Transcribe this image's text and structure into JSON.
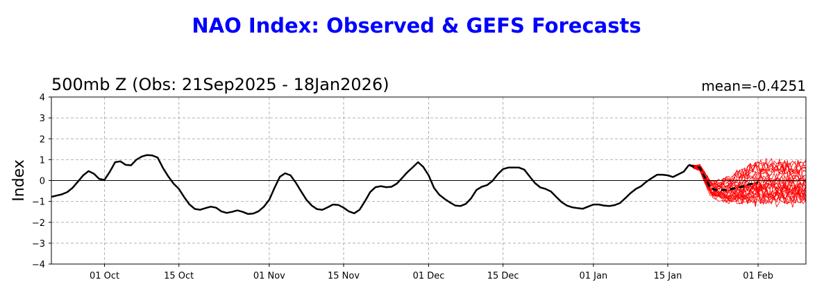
{
  "chart_data": {
    "type": "line",
    "title": "NAO Index: Observed & GEFS Forecasts",
    "subtitle": "500mb Z (Obs: 21Sep2025 - 18Jan2026)",
    "mean_label": "mean=-0.4251",
    "ylabel": "Index",
    "ylim": [
      -4,
      4
    ],
    "yticks": [
      -4,
      -3,
      -2,
      -1,
      0,
      1,
      2,
      3,
      4
    ],
    "xlim_days": [
      -10,
      132
    ],
    "xticks": [
      {
        "day": 0,
        "label": "01 Oct"
      },
      {
        "day": 14,
        "label": "15 Oct"
      },
      {
        "day": 31,
        "label": "01 Nov"
      },
      {
        "day": 45,
        "label": "15 Nov"
      },
      {
        "day": 61,
        "label": "01 Dec"
      },
      {
        "day": 75,
        "label": "15 Dec"
      },
      {
        "day": 92,
        "label": "01 Jan"
      },
      {
        "day": 106,
        "label": "15 Jan"
      },
      {
        "day": 123,
        "label": "01 Feb"
      }
    ],
    "grid": true,
    "observed": {
      "color": "#000000",
      "points": [
        [
          -10,
          -0.78
        ],
        [
          -9,
          -0.72
        ],
        [
          -8,
          -0.66
        ],
        [
          -7,
          -0.55
        ],
        [
          -6,
          -0.35
        ],
        [
          -5,
          -0.05
        ],
        [
          -4,
          0.25
        ],
        [
          -3,
          0.45
        ],
        [
          -2,
          0.33
        ],
        [
          -1,
          0.08
        ],
        [
          0,
          0.03
        ],
        [
          1,
          0.42
        ],
        [
          2,
          0.88
        ],
        [
          3,
          0.92
        ],
        [
          4,
          0.75
        ],
        [
          5,
          0.73
        ],
        [
          6,
          1.0
        ],
        [
          7,
          1.15
        ],
        [
          8,
          1.22
        ],
        [
          9,
          1.2
        ],
        [
          10,
          1.1
        ],
        [
          11,
          0.6
        ],
        [
          12,
          0.2
        ],
        [
          13,
          -0.15
        ],
        [
          14,
          -0.4
        ],
        [
          15,
          -0.8
        ],
        [
          16,
          -1.15
        ],
        [
          17,
          -1.36
        ],
        [
          18,
          -1.4
        ],
        [
          19,
          -1.32
        ],
        [
          20,
          -1.25
        ],
        [
          21,
          -1.3
        ],
        [
          22,
          -1.48
        ],
        [
          23,
          -1.55
        ],
        [
          24,
          -1.5
        ],
        [
          25,
          -1.43
        ],
        [
          26,
          -1.5
        ],
        [
          27,
          -1.6
        ],
        [
          28,
          -1.58
        ],
        [
          29,
          -1.47
        ],
        [
          30,
          -1.25
        ],
        [
          31,
          -0.92
        ],
        [
          32,
          -0.35
        ],
        [
          33,
          0.18
        ],
        [
          34,
          0.35
        ],
        [
          35,
          0.25
        ],
        [
          36,
          -0.1
        ],
        [
          37,
          -0.52
        ],
        [
          38,
          -0.92
        ],
        [
          39,
          -1.2
        ],
        [
          40,
          -1.37
        ],
        [
          41,
          -1.4
        ],
        [
          42,
          -1.28
        ],
        [
          43,
          -1.15
        ],
        [
          44,
          -1.17
        ],
        [
          45,
          -1.3
        ],
        [
          46,
          -1.48
        ],
        [
          47,
          -1.57
        ],
        [
          48,
          -1.4
        ],
        [
          49,
          -1.0
        ],
        [
          50,
          -0.55
        ],
        [
          51,
          -0.32
        ],
        [
          52,
          -0.27
        ],
        [
          53,
          -0.32
        ],
        [
          54,
          -0.3
        ],
        [
          55,
          -0.15
        ],
        [
          56,
          0.12
        ],
        [
          57,
          0.4
        ],
        [
          58,
          0.63
        ],
        [
          59,
          0.88
        ],
        [
          60,
          0.65
        ],
        [
          61,
          0.25
        ],
        [
          62,
          -0.35
        ],
        [
          63,
          -0.68
        ],
        [
          64,
          -0.88
        ],
        [
          65,
          -1.05
        ],
        [
          66,
          -1.2
        ],
        [
          67,
          -1.22
        ],
        [
          68,
          -1.12
        ],
        [
          69,
          -0.85
        ],
        [
          70,
          -0.45
        ],
        [
          71,
          -0.3
        ],
        [
          72,
          -0.22
        ],
        [
          73,
          -0.02
        ],
        [
          74,
          0.3
        ],
        [
          75,
          0.55
        ],
        [
          76,
          0.62
        ],
        [
          77,
          0.62
        ],
        [
          78,
          0.62
        ],
        [
          79,
          0.52
        ],
        [
          80,
          0.2
        ],
        [
          81,
          -0.12
        ],
        [
          82,
          -0.33
        ],
        [
          83,
          -0.4
        ],
        [
          84,
          -0.52
        ],
        [
          85,
          -0.78
        ],
        [
          86,
          -1.03
        ],
        [
          87,
          -1.2
        ],
        [
          88,
          -1.28
        ],
        [
          89,
          -1.32
        ],
        [
          90,
          -1.35
        ],
        [
          91,
          -1.25
        ],
        [
          92,
          -1.15
        ],
        [
          93,
          -1.15
        ],
        [
          94,
          -1.2
        ],
        [
          95,
          -1.22
        ],
        [
          96,
          -1.18
        ],
        [
          97,
          -1.08
        ],
        [
          98,
          -0.85
        ],
        [
          99,
          -0.6
        ],
        [
          100,
          -0.4
        ],
        [
          101,
          -0.27
        ],
        [
          102,
          -0.05
        ],
        [
          103,
          0.12
        ],
        [
          104,
          0.28
        ],
        [
          105,
          0.28
        ],
        [
          106,
          0.25
        ],
        [
          107,
          0.17
        ],
        [
          108,
          0.3
        ],
        [
          109,
          0.42
        ],
        [
          110,
          0.75
        ]
      ]
    },
    "forecast_mean": {
      "color": "#000000",
      "style": "dashed",
      "points": [
        [
          110,
          0.75
        ],
        [
          111,
          0.65
        ],
        [
          112,
          0.62
        ],
        [
          113,
          0.15
        ],
        [
          114,
          -0.35
        ],
        [
          115,
          -0.45
        ],
        [
          116,
          -0.45
        ],
        [
          117,
          -0.45
        ],
        [
          118,
          -0.4
        ],
        [
          119,
          -0.35
        ],
        [
          120,
          -0.3
        ],
        [
          121,
          -0.2
        ],
        [
          122,
          -0.15
        ],
        [
          123,
          -0.1
        ]
      ]
    },
    "forecast_members": {
      "color": "#ff0000",
      "count": 31,
      "start_day": 110,
      "start_value": 0.75,
      "range_at_end": [
        -1.3,
        1.2
      ]
    }
  }
}
